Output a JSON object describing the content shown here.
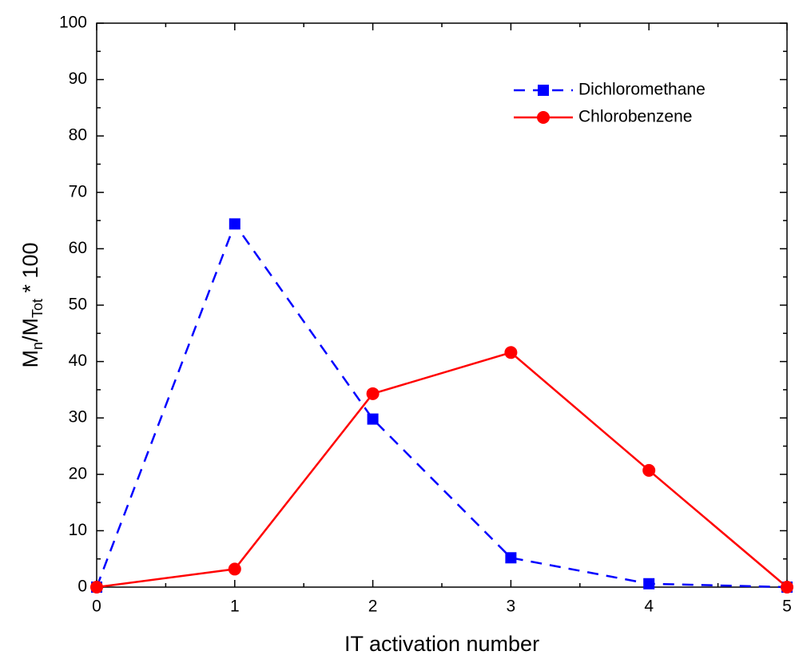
{
  "chart_data": {
    "type": "line",
    "xlabel": "IT activation number",
    "ylabel": [
      "M",
      "n",
      "/M",
      "Tot",
      " * 100"
    ],
    "x": [
      0,
      1,
      2,
      3,
      4,
      5
    ],
    "series": [
      {
        "name": "Dichloromethane",
        "color": "#0000ff",
        "linestyle": "dashed",
        "marker": "square",
        "values": [
          0,
          64.4,
          29.8,
          5.2,
          0.6,
          0
        ]
      },
      {
        "name": "Chlorobenzene",
        "color": "#ff0000",
        "linestyle": "solid",
        "marker": "circle",
        "values": [
          0,
          3.2,
          34.3,
          41.6,
          20.7,
          0
        ]
      }
    ],
    "xlim": [
      0,
      5
    ],
    "xticks": [
      0,
      1,
      2,
      3,
      4,
      5
    ],
    "ylim": [
      0,
      100
    ],
    "yticks": [
      0,
      10,
      20,
      30,
      40,
      50,
      60,
      70,
      80,
      90,
      100
    ],
    "grid": false,
    "legend": "upper-right"
  }
}
